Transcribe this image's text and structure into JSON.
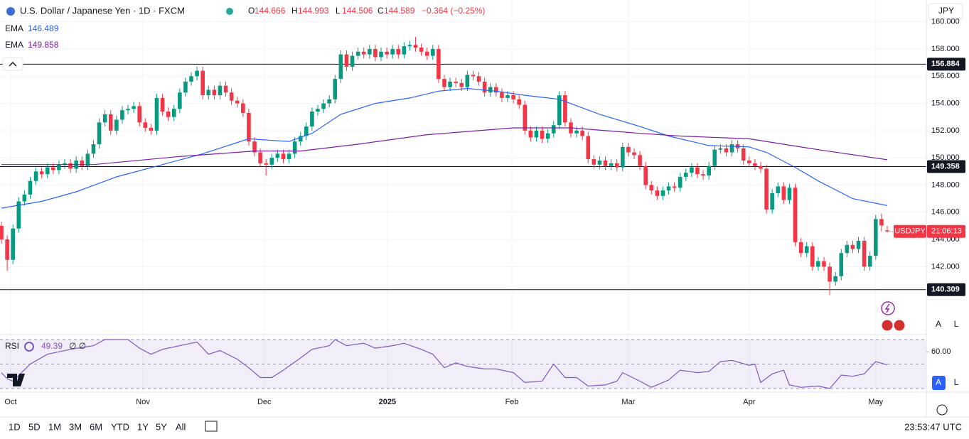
{
  "chart_data": [
    {
      "type": "candlestick",
      "title": "U.S. Dollar / Japanese Yen · 1D · FXCM",
      "ohlc_labels": [
        "O",
        "H",
        "L",
        "C"
      ],
      "change_label": "−0.364 (−0.25%)",
      "symbol": "USDJPY",
      "countdown": "21:06:13",
      "currency": "JPY",
      "scale_buttons": [
        "A",
        "L"
      ],
      "up_color": "#089981",
      "down_color": "#f23645",
      "open": [
        145.0,
        144.0,
        142.5,
        144.8,
        146.8,
        147.3,
        148.3,
        149.0,
        148.8,
        149.3,
        149.1,
        149.5,
        149.6,
        149.2,
        149.8,
        149.4,
        150.3,
        151.0,
        152.6,
        153.2,
        152.0,
        152.8,
        153.5,
        153.6,
        153.8,
        152.6,
        152.2,
        152.0,
        154.4,
        153.4,
        153.0,
        153.6,
        154.8,
        155.6,
        156.0,
        156.4,
        154.6,
        155.0,
        154.6,
        155.3,
        154.8,
        154.2,
        154.0,
        153.3,
        151.2,
        150.4,
        149.6,
        149.5,
        150.0,
        150.3,
        149.9,
        150.3,
        151.2,
        151.6,
        152.3,
        153.4,
        153.6,
        154.0,
        154.3,
        155.8,
        157.6,
        156.7,
        157.5,
        157.8,
        157.6,
        158.0,
        157.4,
        157.8,
        157.6,
        158.0,
        157.6,
        158.2,
        158.3,
        158.1,
        157.8,
        157.5,
        158.0,
        155.8,
        155.2,
        155.6,
        155.5,
        155.2,
        156.1,
        156.0,
        155.6,
        154.8,
        155.2,
        154.8,
        154.4,
        154.6,
        154.3,
        153.9,
        152.0,
        151.5,
        152.0,
        151.4,
        151.8,
        152.4,
        154.6,
        152.6,
        151.8,
        152.0,
        151.6,
        149.9,
        149.5,
        149.8,
        149.4,
        149.6,
        149.3,
        150.8,
        150.4,
        150.2,
        149.4,
        148.0,
        147.6,
        147.2,
        147.6,
        147.9,
        147.8,
        148.6,
        148.9,
        149.3,
        148.8,
        148.7,
        149.4,
        150.6,
        150.7,
        150.4,
        151.0,
        150.7,
        149.8,
        149.6,
        149.4,
        149.2,
        146.2,
        147.4,
        147.9,
        146.9,
        147.8,
        143.8,
        143.0,
        143.5,
        142.0,
        142.4,
        142.0,
        140.9,
        141.3,
        143.0,
        143.6,
        143.3,
        143.9,
        142.0,
        142.8,
        145.5,
        144.666
      ],
      "high": [
        145.3,
        144.3,
        145.1,
        147.1,
        147.6,
        148.6,
        149.3,
        149.3,
        149.6,
        149.6,
        149.8,
        149.9,
        149.9,
        150.1,
        150.1,
        150.6,
        151.3,
        152.9,
        153.5,
        153.5,
        153.1,
        153.8,
        153.9,
        154.1,
        154.1,
        152.9,
        152.5,
        154.7,
        154.7,
        153.7,
        153.9,
        155.1,
        155.9,
        156.3,
        156.7,
        156.7,
        155.3,
        155.3,
        155.6,
        155.6,
        155.1,
        154.5,
        154.3,
        153.6,
        151.5,
        150.7,
        149.9,
        150.3,
        150.6,
        150.6,
        150.6,
        151.5,
        151.9,
        152.6,
        153.7,
        153.9,
        154.3,
        154.6,
        156.1,
        157.9,
        157.9,
        157.8,
        158.1,
        158.1,
        158.3,
        158.3,
        158.1,
        158.1,
        158.3,
        158.3,
        158.5,
        158.6,
        158.9,
        158.4,
        158.1,
        158.3,
        158.3,
        156.1,
        155.9,
        155.9,
        155.8,
        156.4,
        156.4,
        156.3,
        155.9,
        155.5,
        155.5,
        155.1,
        154.9,
        154.9,
        154.6,
        154.2,
        152.3,
        152.3,
        152.3,
        152.1,
        152.7,
        154.9,
        154.9,
        152.9,
        152.3,
        152.3,
        151.9,
        150.2,
        150.1,
        150.1,
        149.9,
        149.9,
        151.1,
        151.1,
        150.7,
        150.5,
        149.7,
        148.3,
        147.9,
        147.9,
        148.2,
        148.2,
        148.9,
        149.2,
        149.6,
        149.6,
        149.1,
        149.7,
        150.9,
        151.0,
        151.0,
        151.3,
        151.3,
        151.0,
        150.1,
        149.9,
        149.7,
        149.5,
        147.7,
        148.2,
        148.2,
        148.1,
        148.1,
        144.1,
        143.8,
        143.8,
        142.7,
        142.7,
        142.3,
        141.6,
        143.3,
        143.9,
        143.9,
        144.2,
        144.2,
        143.1,
        145.8,
        145.9,
        144.993
      ],
      "low": [
        143.7,
        141.7,
        142.2,
        144.5,
        146.5,
        147.0,
        148.0,
        148.5,
        148.5,
        148.8,
        148.8,
        149.2,
        148.9,
        148.9,
        149.1,
        149.1,
        150.0,
        150.7,
        152.3,
        151.7,
        151.7,
        152.5,
        153.2,
        153.3,
        152.3,
        151.9,
        151.7,
        151.7,
        153.1,
        152.7,
        152.7,
        153.3,
        154.5,
        155.3,
        155.7,
        154.3,
        154.3,
        154.3,
        154.3,
        154.5,
        153.9,
        153.7,
        153.0,
        150.9,
        150.1,
        149.3,
        148.7,
        149.2,
        149.7,
        149.6,
        149.6,
        150.0,
        150.9,
        151.3,
        152.0,
        153.1,
        153.3,
        153.7,
        154.0,
        155.5,
        156.4,
        156.4,
        157.2,
        157.3,
        157.3,
        157.1,
        157.1,
        157.3,
        157.3,
        157.3,
        157.3,
        157.9,
        157.8,
        157.5,
        157.2,
        157.2,
        155.5,
        154.9,
        154.9,
        155.2,
        154.9,
        154.9,
        155.7,
        155.3,
        154.5,
        154.5,
        154.5,
        154.1,
        154.1,
        154.0,
        153.6,
        151.7,
        151.2,
        151.2,
        151.1,
        151.1,
        151.5,
        152.1,
        152.3,
        151.5,
        151.5,
        151.3,
        149.6,
        149.2,
        149.2,
        149.1,
        149.1,
        149.0,
        149.0,
        150.1,
        149.9,
        149.1,
        147.7,
        147.3,
        146.9,
        146.9,
        147.3,
        147.5,
        147.5,
        148.3,
        148.6,
        148.5,
        148.4,
        148.4,
        149.1,
        150.3,
        150.1,
        150.1,
        150.4,
        149.5,
        149.3,
        149.1,
        148.9,
        145.9,
        145.9,
        147.1,
        146.6,
        146.6,
        143.5,
        142.7,
        142.7,
        141.7,
        141.7,
        141.7,
        139.9,
        140.6,
        141.0,
        142.7,
        143.0,
        143.0,
        141.7,
        141.7,
        142.5,
        144.6,
        144.506
      ],
      "close": [
        144.0,
        142.5,
        144.8,
        146.8,
        147.3,
        148.3,
        149.0,
        148.8,
        149.3,
        149.1,
        149.5,
        149.6,
        149.2,
        149.8,
        149.4,
        150.3,
        151.0,
        152.6,
        153.2,
        152.0,
        152.8,
        153.5,
        153.6,
        153.8,
        152.6,
        152.2,
        152.0,
        154.4,
        153.4,
        153.0,
        153.6,
        154.8,
        155.6,
        156.0,
        156.4,
        154.6,
        155.0,
        154.6,
        155.3,
        154.8,
        154.2,
        154.0,
        153.3,
        151.2,
        150.4,
        149.6,
        149.5,
        150.0,
        150.3,
        149.9,
        150.3,
        151.2,
        151.6,
        152.3,
        153.4,
        153.6,
        154.0,
        154.3,
        155.8,
        157.6,
        156.7,
        157.5,
        157.8,
        157.6,
        158.0,
        157.4,
        157.8,
        157.6,
        158.0,
        157.6,
        158.2,
        158.3,
        158.1,
        157.8,
        157.5,
        158.0,
        155.8,
        155.2,
        155.6,
        155.5,
        155.2,
        156.1,
        156.0,
        155.6,
        154.8,
        155.2,
        154.8,
        154.4,
        154.6,
        154.3,
        153.9,
        152.0,
        151.5,
        152.0,
        151.4,
        151.8,
        152.4,
        154.6,
        152.6,
        151.8,
        152.0,
        151.6,
        149.9,
        149.5,
        149.8,
        149.4,
        149.6,
        149.3,
        150.8,
        150.4,
        150.2,
        149.4,
        148.0,
        147.6,
        147.2,
        147.6,
        147.9,
        147.8,
        148.6,
        148.9,
        149.3,
        148.8,
        148.7,
        149.4,
        150.6,
        150.7,
        150.4,
        151.0,
        150.7,
        149.8,
        149.6,
        149.4,
        149.2,
        146.2,
        147.4,
        147.9,
        146.9,
        147.8,
        143.8,
        143.0,
        143.5,
        142.0,
        142.4,
        142.0,
        140.9,
        141.3,
        143.0,
        143.6,
        143.3,
        143.9,
        142.0,
        142.8,
        145.5,
        145.03,
        144.589
      ],
      "overlays": [
        {
          "name": "EMA",
          "color": "#2962ff",
          "x": [
            0,
            7,
            13,
            20,
            28,
            35,
            43,
            50,
            54,
            59,
            65,
            71,
            76,
            81,
            86,
            91,
            97,
            104,
            111,
            116,
            123,
            130,
            133,
            138,
            142,
            148,
            154
          ],
          "values": [
            146.3,
            146.8,
            147.5,
            148.6,
            149.5,
            150.3,
            151.4,
            151.2,
            151.8,
            153.2,
            154.0,
            154.4,
            154.9,
            155.1,
            154.9,
            154.6,
            154.3,
            153.2,
            152.3,
            151.6,
            150.9,
            150.8,
            150.4,
            149.3,
            148.3,
            147.0,
            146.489
          ]
        },
        {
          "name": "EMA",
          "color": "#7b1fa2",
          "x": [
            0,
            16,
            31,
            44,
            52,
            62,
            74,
            89,
            99,
            111,
            118,
            130,
            142,
            154
          ],
          "values": [
            149.5,
            149.5,
            150.1,
            150.5,
            150.5,
            151.0,
            151.7,
            152.2,
            152.2,
            151.8,
            151.6,
            151.4,
            150.6,
            149.858
          ]
        }
      ],
      "levels": [
        156.884,
        149.358,
        140.309
      ],
      "xlim": [
        -0.25,
        160.8
      ],
      "ylim": [
        137.06,
        161.6
      ],
      "yticks": [
        {
          "value": 142,
          "label": "142.000"
        },
        {
          "value": 144,
          "label": "144.000"
        },
        {
          "value": 146,
          "label": "146.000"
        },
        {
          "value": 148,
          "label": "148.000"
        },
        {
          "value": 150,
          "label": "150.000"
        },
        {
          "value": 152,
          "label": "152.000"
        },
        {
          "value": 154,
          "label": "154.000"
        },
        {
          "value": 156,
          "label": "156.000"
        },
        {
          "value": 158,
          "label": "158.000"
        },
        {
          "value": 160,
          "label": "160.000"
        }
      ],
      "xticks": [
        {
          "value": 1.6,
          "label": "Oct"
        },
        {
          "value": 24.6,
          "label": "Nov"
        },
        {
          "value": 45.7,
          "label": "Dec"
        },
        {
          "value": 67.1,
          "label": "2025"
        },
        {
          "value": 88.75,
          "label": "Feb"
        },
        {
          "value": 109.0,
          "label": "Mar"
        },
        {
          "value": 130.0,
          "label": "Apr"
        },
        {
          "value": 152.0,
          "label": "May"
        }
      ],
      "grid": true,
      "timeframes": [
        "1D",
        "5D",
        "1M",
        "3M",
        "6M",
        "YTD",
        "1Y",
        "5Y",
        "All"
      ],
      "clock": "23:53:47 UTC"
    },
    {
      "type": "line",
      "name": "RSI",
      "settings_label": "∅ ∅",
      "color": "#7e57c2",
      "x": [
        0,
        1,
        2,
        5,
        8,
        12,
        16,
        18,
        22,
        24,
        26,
        28,
        32,
        34,
        36,
        38,
        41,
        43,
        45,
        47,
        49,
        52,
        54,
        57,
        58,
        60,
        63,
        65,
        68,
        70,
        73,
        75,
        77,
        79,
        81,
        84,
        86,
        89,
        91,
        94,
        96,
        98,
        100,
        102,
        105,
        107,
        108,
        111,
        113,
        116,
        118,
        121,
        123,
        125,
        127,
        130,
        131,
        132,
        134,
        136,
        137,
        139,
        142,
        144,
        146,
        148,
        150,
        152,
        154
      ],
      "values": [
        43,
        38,
        36,
        50,
        58,
        62,
        65,
        70,
        70,
        63,
        58,
        62,
        66,
        68,
        58,
        61,
        54,
        47,
        39,
        39,
        45,
        55,
        62,
        65,
        70,
        65,
        67,
        63,
        65,
        67,
        62,
        58,
        47,
        51,
        48,
        46,
        46,
        43,
        35,
        36,
        50,
        39,
        39,
        32,
        33,
        36,
        43,
        36,
        31,
        37,
        45,
        43,
        44,
        52,
        53,
        49,
        50,
        35,
        42,
        45,
        33,
        31,
        32,
        30,
        41,
        40,
        42,
        52,
        49.39
      ],
      "levels": [
        70,
        50,
        30
      ],
      "ylim": [
        27.1,
        72.9
      ],
      "yticks": [
        {
          "value": 60,
          "label": "60.00"
        }
      ]
    }
  ]
}
